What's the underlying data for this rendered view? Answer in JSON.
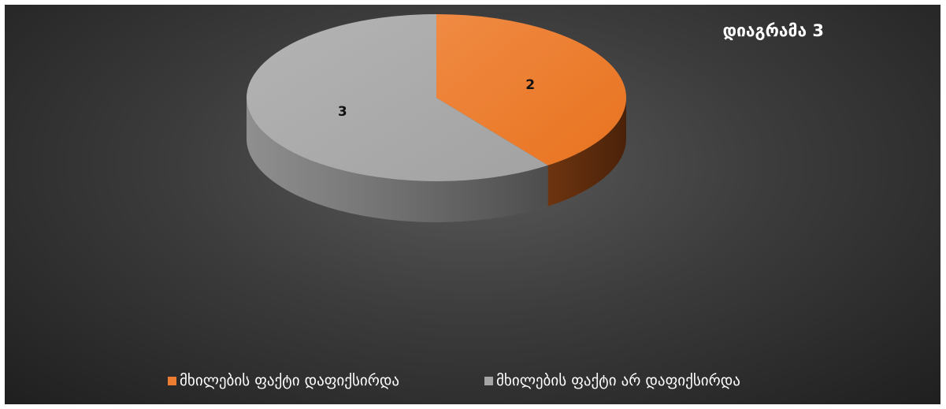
{
  "chart_data": {
    "type": "pie",
    "style": "3d",
    "title": "დიაგრამა 3",
    "categories": [
      "მხილების ფაქტი დაფიქსირდა",
      "მხილების ფაქტი არ დაფიქსირდა"
    ],
    "values": [
      2,
      3
    ],
    "data_labels": [
      "2",
      "3"
    ],
    "colors": [
      "#ED7D31",
      "#A5A5A5"
    ],
    "legend_position": "bottom",
    "grid": false
  }
}
